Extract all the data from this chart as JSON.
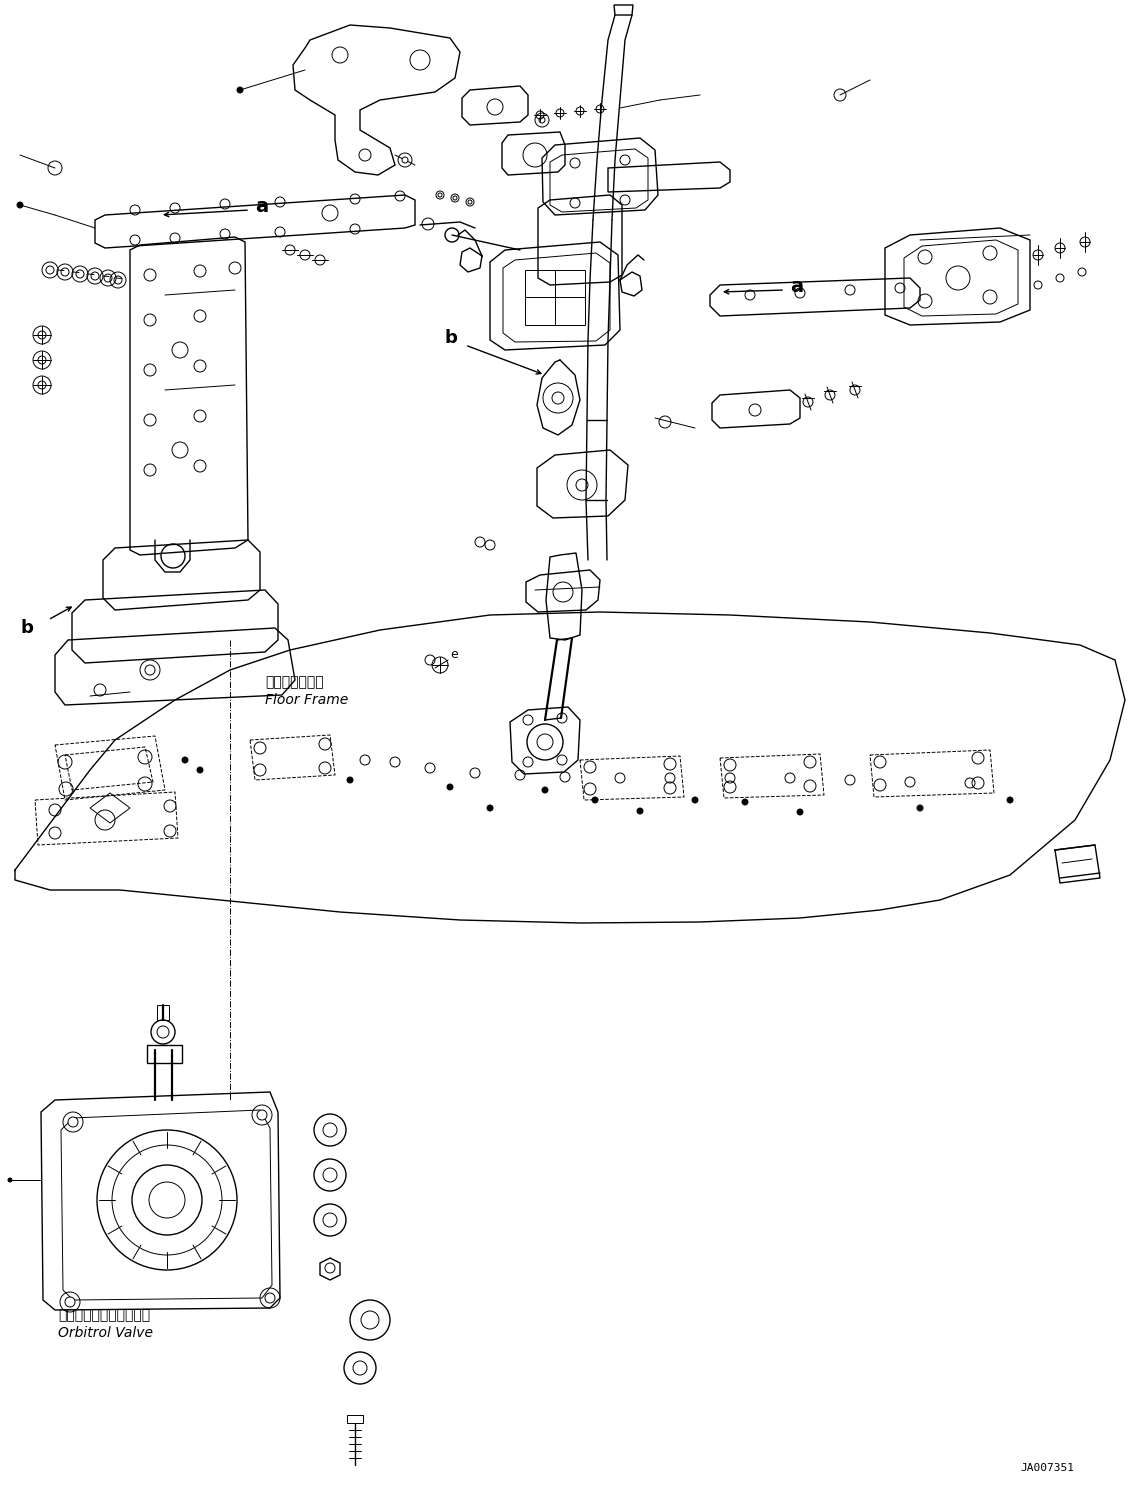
{
  "background_color": "#ffffff",
  "line_color": "#000000",
  "text_color": "#000000",
  "figsize": [
    11.47,
    14.92
  ],
  "dpi": 100,
  "label_floor_frame_jp": "フロアフレーム",
  "label_floor_frame_en": "Floor Frame",
  "label_orbitrol_jp": "オービットロールバルブ",
  "label_orbitrol_en": "Orbitrol Valve",
  "label_part_id": "JA007351",
  "label_a": "a",
  "label_b": "b",
  "lw_thin": 0.7,
  "lw_medium": 1.0,
  "lw_thick": 1.6
}
